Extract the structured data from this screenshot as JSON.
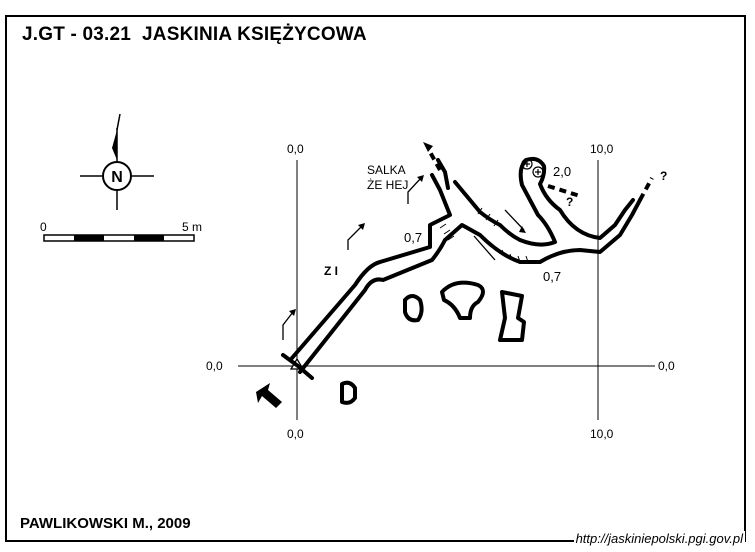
{
  "title": "J.GT - 03.21  JASKINIA KSIĘŻYCOWA",
  "author": "PAWLIKOWSKI M., 2009",
  "source_url": "http://jaskiniepolski.pgi.gov.pl",
  "compass": {
    "north_label": "N"
  },
  "scale_bar": {
    "start_label": "0",
    "end_label": "5 m"
  },
  "grid_labels": {
    "top_left": "0,0",
    "top_right": "10,0",
    "left": "0,0",
    "right": "0,0",
    "bottom_left": "0,0",
    "bottom_right": "10,0"
  },
  "annotations": {
    "chamber_line1": "SALKA",
    "chamber_line2": "ŻE HEJ",
    "height_a": "0,7",
    "height_b": "0,7",
    "height_c": "2,0",
    "zi": "Z I",
    "unknown_1": "?",
    "unknown_2": "?"
  }
}
